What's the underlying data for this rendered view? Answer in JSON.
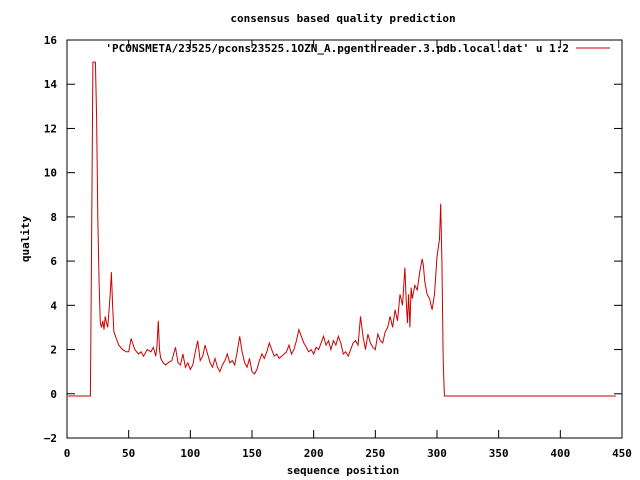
{
  "chart_data": {
    "type": "line",
    "title": "consensus based quality prediction",
    "xlabel": "sequence position",
    "ylabel": "quality",
    "xlim": [
      0,
      450
    ],
    "ylim": [
      -2,
      16
    ],
    "xticks": [
      0,
      50,
      100,
      150,
      200,
      250,
      300,
      350,
      400,
      450
    ],
    "yticks": [
      -2,
      0,
      2,
      4,
      6,
      8,
      10,
      12,
      14,
      16
    ],
    "grid": false,
    "legend_position": "top-right",
    "series": [
      {
        "name": "'PCONSMETA/23525/pcons23525.1OZN_A.pgenthreader.3.pdb.local.dat' u 1:2",
        "color": "#cc0000",
        "x": [
          1,
          5,
          10,
          15,
          19,
          20,
          21,
          22,
          23,
          24,
          25,
          26,
          27,
          28,
          29,
          30,
          31,
          32,
          33,
          34,
          35,
          36,
          37,
          38,
          40,
          42,
          45,
          48,
          50,
          52,
          55,
          58,
          60,
          62,
          65,
          68,
          70,
          72,
          73,
          74,
          75,
          76,
          78,
          80,
          82,
          85,
          88,
          90,
          92,
          94,
          96,
          98,
          100,
          102,
          104,
          106,
          108,
          110,
          112,
          114,
          116,
          118,
          120,
          122,
          124,
          126,
          128,
          130,
          132,
          134,
          136,
          138,
          140,
          142,
          144,
          146,
          148,
          150,
          152,
          154,
          156,
          158,
          160,
          162,
          164,
          166,
          168,
          170,
          172,
          174,
          176,
          178,
          180,
          182,
          184,
          186,
          188,
          190,
          192,
          194,
          196,
          198,
          200,
          202,
          204,
          206,
          208,
          210,
          212,
          214,
          216,
          218,
          220,
          222,
          224,
          226,
          228,
          230,
          232,
          234,
          236,
          238,
          240,
          242,
          244,
          246,
          248,
          250,
          252,
          254,
          256,
          258,
          260,
          262,
          264,
          266,
          268,
          270,
          272,
          274,
          275,
          276,
          277,
          278,
          279,
          280,
          282,
          284,
          286,
          288,
          289,
          290,
          292,
          294,
          296,
          298,
          300,
          302,
          303,
          304,
          305,
          306,
          307,
          310,
          320,
          350,
          400,
          445
        ],
        "y": [
          -0.1,
          -0.1,
          -0.1,
          -0.1,
          -0.1,
          7.5,
          15.0,
          15.0,
          15.0,
          12.5,
          8.0,
          5.0,
          3.2,
          3.0,
          3.3,
          2.9,
          3.5,
          3.2,
          3.0,
          3.7,
          4.5,
          5.5,
          4.0,
          2.8,
          2.5,
          2.2,
          2.0,
          1.9,
          1.9,
          2.5,
          2.0,
          1.8,
          1.9,
          1.7,
          2.0,
          1.9,
          2.1,
          1.7,
          2.2,
          3.3,
          2.0,
          1.6,
          1.4,
          1.3,
          1.4,
          1.5,
          2.1,
          1.4,
          1.3,
          1.8,
          1.2,
          1.4,
          1.1,
          1.3,
          1.9,
          2.4,
          1.5,
          1.7,
          2.2,
          1.8,
          1.4,
          1.2,
          1.6,
          1.2,
          1.0,
          1.3,
          1.5,
          1.8,
          1.4,
          1.5,
          1.3,
          1.9,
          2.6,
          1.9,
          1.4,
          1.2,
          1.6,
          1.0,
          0.9,
          1.1,
          1.5,
          1.8,
          1.6,
          1.9,
          2.3,
          2.0,
          1.7,
          1.8,
          1.6,
          1.7,
          1.8,
          1.9,
          2.2,
          1.8,
          2.0,
          2.4,
          2.9,
          2.6,
          2.3,
          2.1,
          1.9,
          2.0,
          1.8,
          2.1,
          2.0,
          2.3,
          2.6,
          2.2,
          2.4,
          2.0,
          2.4,
          2.2,
          2.6,
          2.3,
          1.8,
          1.9,
          1.7,
          2.0,
          2.3,
          2.4,
          2.2,
          3.5,
          2.6,
          2.0,
          2.7,
          2.3,
          2.1,
          2.0,
          2.7,
          2.4,
          2.3,
          2.8,
          3.0,
          3.5,
          3.0,
          3.8,
          3.3,
          4.5,
          4.0,
          5.7,
          4.2,
          3.2,
          4.5,
          3.0,
          4.8,
          4.3,
          4.9,
          4.7,
          5.5,
          6.1,
          5.8,
          5.1,
          4.5,
          4.3,
          3.8,
          4.5,
          6.2,
          7.0,
          8.6,
          6.0,
          1.5,
          -0.1,
          -0.1,
          -0.1,
          -0.1,
          -0.1,
          -0.1,
          -0.1
        ]
      }
    ]
  }
}
